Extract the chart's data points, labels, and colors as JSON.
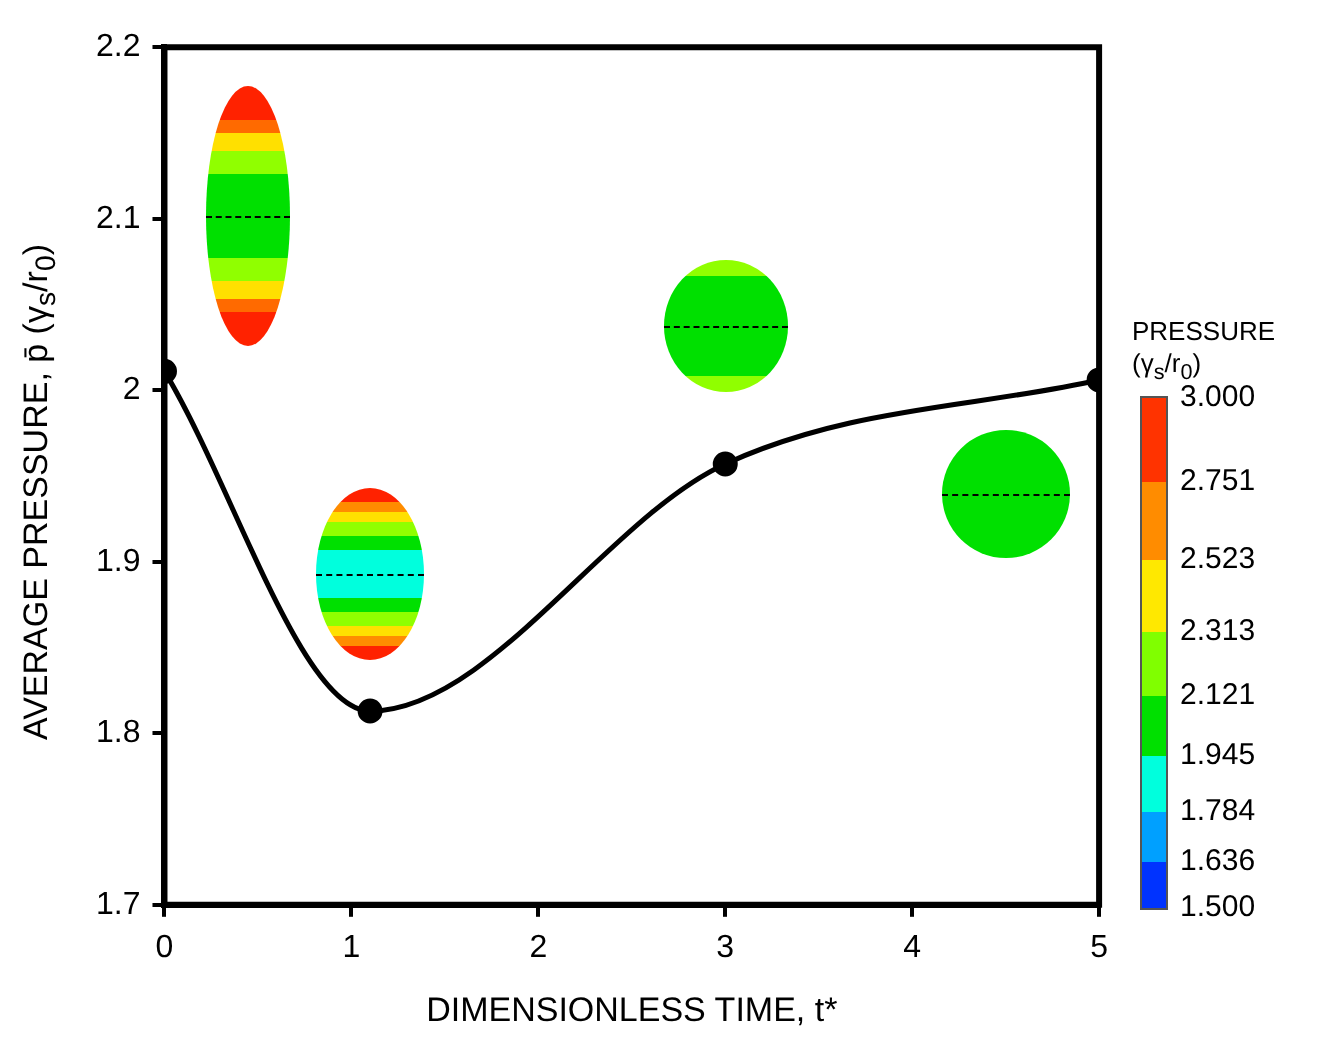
{
  "chart_data": {
    "type": "line",
    "xlabel": "DIMENSIONLESS TIME, t*",
    "ylabel": "AVERAGE PRESSURE,  p̄ (γ$_{s}$/r$_{0}$)",
    "clabel": "PRESSURE\n(γ$_{s}$/r$_{0}$)",
    "x": [
      0,
      1.1,
      3,
      5
    ],
    "series": [
      {
        "color": "#000000",
        "values": [
          2.011,
          1.813,
          1.957,
          2.006
        ]
      }
    ],
    "xlim": [
      0,
      5
    ],
    "xticks": [
      0,
      1,
      2,
      3,
      4,
      5
    ],
    "ylim": [
      1.7,
      2.2
    ],
    "yticks": [
      1.7,
      1.8,
      1.9,
      2,
      2.1,
      2.2
    ],
    "clim": [
      1.5,
      3
    ],
    "cticks": [
      {
        "value": 1.5,
        "label": "1.500"
      },
      {
        "value": 1.636,
        "label": "1.636"
      },
      {
        "value": 1.784,
        "label": "1.784"
      },
      {
        "value": 1.945,
        "label": "1.945"
      },
      {
        "value": 2.121,
        "label": "2.121"
      },
      {
        "value": 2.313,
        "label": "2.313"
      },
      {
        "value": 2.523,
        "label": "2.523"
      },
      {
        "value": 2.751,
        "label": "2.751"
      },
      {
        "value": 3,
        "label": "3.000"
      }
    ],
    "marker": "circle"
  }
}
